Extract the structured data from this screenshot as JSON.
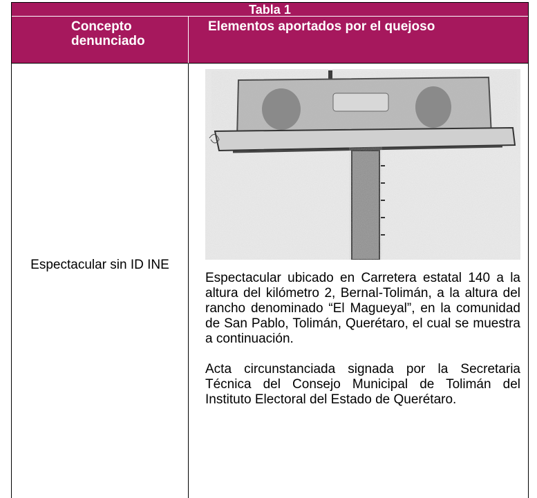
{
  "table": {
    "title": "Tabla 1",
    "headers": [
      "Concepto denunciado",
      "Elementos aportados por el quejoso"
    ],
    "rows": [
      [
        "Espectacular sin ID INE",
        [
          "Espectacular ubicado en Carretera estatal 140 a la altura del kilómetro 2, Bernal-Tolimán, a la altura del rancho denominado “El Magueyal”, en la comunidad de San Pablo, Tolimán, Querétaro, el cual se muestra a continuación.",
          "Acta circunstanciada signada por la Secretaria Técnica del Consejo Municipal de Tolimán del Instituto Electoral del Estado de Querétaro."
        ]
      ]
    ]
  }
}
